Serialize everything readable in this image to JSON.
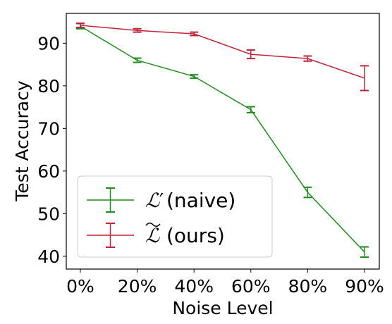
{
  "chart_data": {
    "type": "line",
    "title": "",
    "xlabel": "Noise Level",
    "ylabel": "Test Accuracy",
    "categories": [
      "0%",
      "20%",
      "40%",
      "60%",
      "80%",
      "90%"
    ],
    "ylim": [
      37,
      97
    ],
    "yticks": [
      40,
      50,
      60,
      70,
      80,
      90
    ],
    "grid": false,
    "legend_position": "lower-left",
    "error_bars": true,
    "series": [
      {
        "name": "ℒ′ (naive)",
        "symbol": "ℒ",
        "symbol_suffix": "′",
        "label_rest": " (naive)",
        "color": "#228B22",
        "values": [
          94.0,
          86.0,
          82.2,
          74.4,
          55.0,
          41.0
        ],
        "errors": [
          0.6,
          0.5,
          0.4,
          0.7,
          1.2,
          1.2
        ]
      },
      {
        "name": "ℒ̃ (ours)",
        "symbol": "ℒ",
        "symbol_suffix": "",
        "label_rest": " (ours)",
        "color": "#C0243C",
        "values": [
          94.2,
          93.0,
          92.2,
          87.4,
          86.4,
          81.8
        ],
        "errors": [
          0.5,
          0.4,
          0.4,
          1.0,
          0.6,
          2.9
        ]
      }
    ]
  }
}
